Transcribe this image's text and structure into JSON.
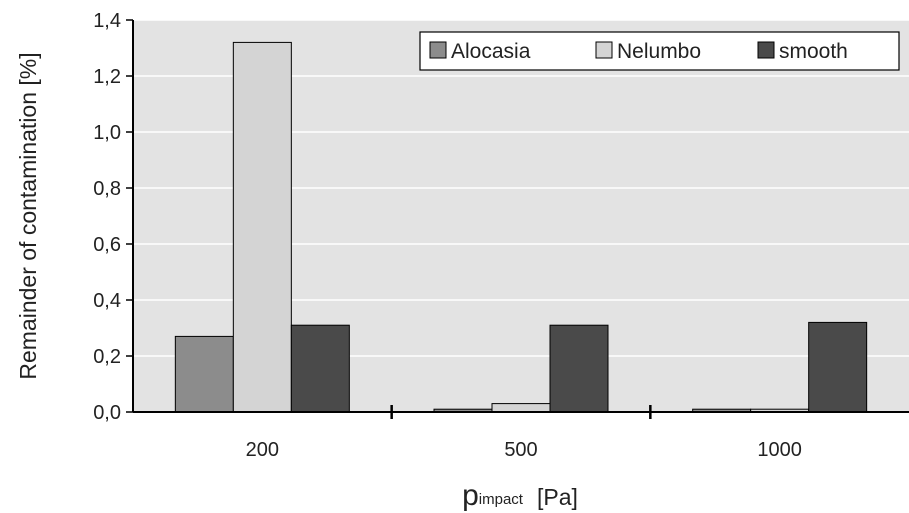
{
  "chart_data": {
    "type": "bar",
    "title": "",
    "ylabel": "Remainder of contamination  [%]",
    "xlabel": {
      "main": "p",
      "subscript": "impact",
      "unit": "[Pa]"
    },
    "categories": [
      "200",
      "500",
      "1000"
    ],
    "series": [
      {
        "name": "Alocasia",
        "color": "#8c8c8c",
        "values": [
          0.27,
          0.01,
          0.01
        ]
      },
      {
        "name": "Nelumbo",
        "color": "#d4d4d4",
        "values": [
          1.32,
          0.03,
          0.01
        ]
      },
      {
        "name": "smooth",
        "color": "#4a4a4a",
        "values": [
          0.31,
          0.31,
          0.32
        ]
      }
    ],
    "ylim": [
      0,
      1.4
    ],
    "yticks": [
      0,
      0.2,
      0.4,
      0.6,
      0.8,
      1.0,
      1.2,
      1.4
    ],
    "ytick_labels": [
      "0,0",
      "0,2",
      "0,4",
      "0,6",
      "0,8",
      "1,0",
      "1,2",
      "1,4"
    ],
    "grid": true,
    "legend_position": "top-right"
  }
}
